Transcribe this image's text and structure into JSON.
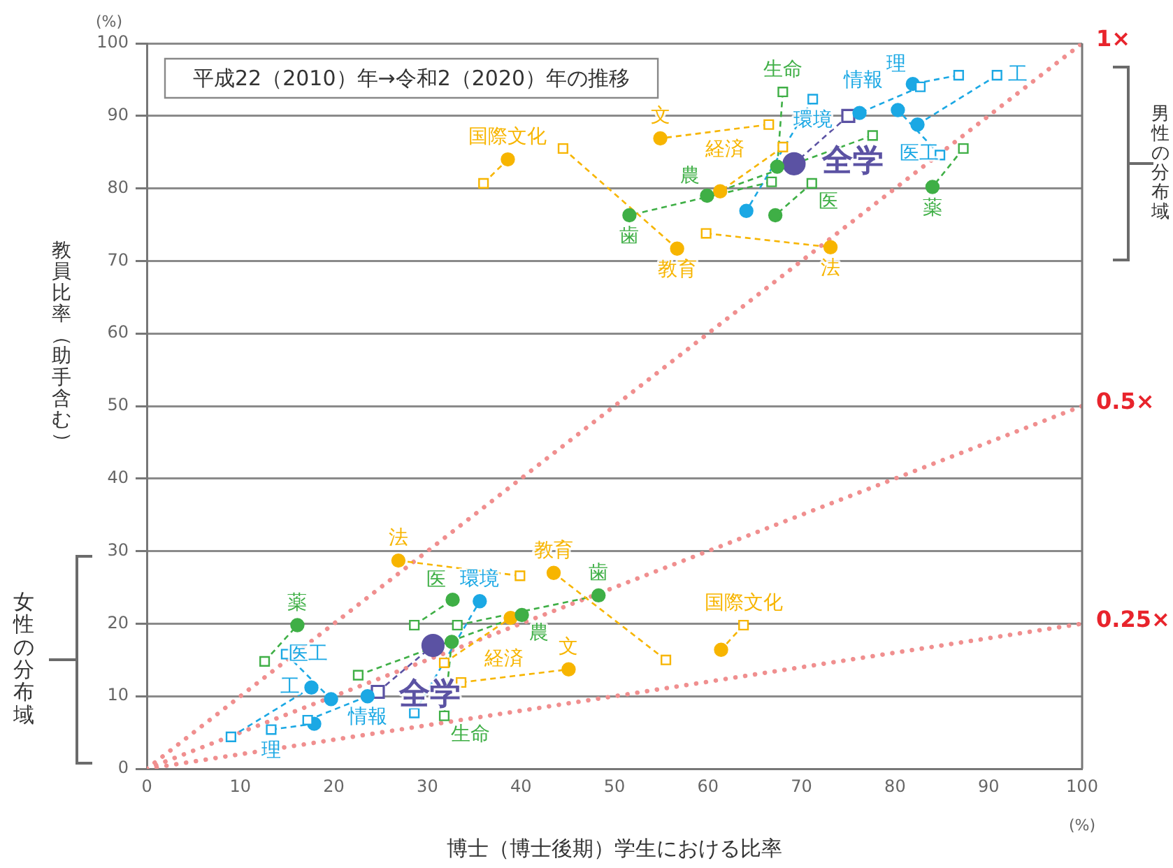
{
  "chart_data": {
    "type": "line",
    "title": "平成22（2010）年→令和2（2020）年の推移",
    "xlabel": "博士（博士後期）学生における比率",
    "ylabel": "教員比率（助手含む）",
    "xlim": [
      0,
      100
    ],
    "ylim": [
      0,
      100
    ],
    "xticks": [
      0,
      10,
      20,
      30,
      40,
      50,
      60,
      70,
      80,
      90,
      100
    ],
    "yticks": [
      0,
      10,
      20,
      30,
      40,
      50,
      60,
      70,
      80,
      90,
      100
    ],
    "grid": "y",
    "legend": false,
    "line_style": "dashed",
    "annotations": [
      "(%)",
      "(%)",
      "男性の分布域",
      "女性の分布域"
    ],
    "series": [
      {
        "name": "1×",
        "color": "#f08f8f",
        "line_style": "dotted",
        "marker": "none",
        "x": [
          0,
          100
        ],
        "values": [
          0,
          100
        ]
      },
      {
        "name": "0.5×",
        "color": "#f08f8f",
        "line_style": "dotted",
        "marker": "none",
        "x": [
          0,
          100
        ],
        "values": [
          0,
          50
        ]
      },
      {
        "name": "0.25×",
        "color": "#f08f8f",
        "line_style": "dotted",
        "marker": "none",
        "x": [
          0,
          100
        ],
        "values": [
          0,
          20
        ]
      },
      {
        "name": "国際文化",
        "color": "#f7b500",
        "marker": "none",
        "x": [
          36.0,
          38.6
        ],
        "values": [
          80.7,
          84.0
        ]
      },
      {
        "name": "教育",
        "color": "#f7b500",
        "marker": "none",
        "x": [
          44.5,
          56.7
        ],
        "values": [
          85.5,
          71.7
        ]
      },
      {
        "name": "文",
        "color": "#f7b500",
        "marker": "none",
        "x": [
          66.5,
          54.9
        ],
        "values": [
          88.8,
          86.9
        ]
      },
      {
        "name": "経済",
        "color": "#f7b500",
        "marker": "none",
        "x": [
          68.0,
          61.3
        ],
        "values": [
          85.7,
          79.6
        ]
      },
      {
        "name": "法",
        "color": "#f7b500",
        "marker": "none",
        "x": [
          59.8,
          73.1
        ],
        "values": [
          73.8,
          71.9
        ]
      },
      {
        "name": "生命",
        "color": "#3faf46",
        "marker": "none",
        "x": [
          68.0,
          67.4
        ],
        "values": [
          93.3,
          83.0
        ]
      },
      {
        "name": "農",
        "color": "#3faf46",
        "marker": "none",
        "x": [
          77.6,
          59.9
        ],
        "values": [
          87.3,
          79.0
        ]
      },
      {
        "name": "歯",
        "color": "#3faf46",
        "marker": "none",
        "x": [
          66.8,
          51.6
        ],
        "values": [
          80.9,
          76.3
        ]
      },
      {
        "name": "医",
        "color": "#3faf46",
        "marker": "none",
        "x": [
          71.1,
          67.2
        ],
        "values": [
          80.7,
          76.3
        ]
      },
      {
        "name": "薬",
        "color": "#3faf46",
        "marker": "none",
        "x": [
          87.3,
          84.0
        ],
        "values": [
          85.5,
          80.2
        ]
      },
      {
        "name": "環境",
        "color": "#1ba8e4",
        "marker": "none",
        "x": [
          71.2,
          64.1
        ],
        "values": [
          92.3,
          76.9
        ]
      },
      {
        "name": "情報",
        "color": "#1ba8e4",
        "marker": "none",
        "x": [
          82.7,
          76.2
        ],
        "values": [
          94.0,
          90.4
        ]
      },
      {
        "name": "理",
        "color": "#1ba8e4",
        "marker": "none",
        "x": [
          86.8,
          81.9
        ],
        "values": [
          95.6,
          94.4
        ]
      },
      {
        "name": "工",
        "color": "#1ba8e4",
        "marker": "none",
        "x": [
          90.9,
          82.4
        ],
        "values": [
          95.6,
          88.8
        ]
      },
      {
        "name": "医工",
        "color": "#1ba8e4",
        "marker": "none",
        "x": [
          84.8,
          80.3
        ],
        "values": [
          84.6,
          90.8
        ]
      },
      {
        "name": "法",
        "color": "#f7b500",
        "marker": "none",
        "x": [
          39.9,
          26.9
        ],
        "values": [
          26.6,
          28.7
        ]
      },
      {
        "name": "教育",
        "color": "#f7b500",
        "marker": "none",
        "x": [
          55.5,
          43.5
        ],
        "values": [
          15.0,
          27.0
        ]
      },
      {
        "name": "国際文化",
        "color": "#f7b500",
        "marker": "none",
        "x": [
          63.8,
          61.4
        ],
        "values": [
          19.8,
          16.4
        ]
      },
      {
        "name": "文",
        "color": "#f7b500",
        "marker": "none",
        "x": [
          33.6,
          45.1
        ],
        "values": [
          11.9,
          13.7
        ]
      },
      {
        "name": "経済",
        "color": "#f7b500",
        "marker": "none",
        "x": [
          31.8,
          38.9
        ],
        "values": [
          14.6,
          20.8
        ]
      },
      {
        "name": "歯",
        "color": "#3faf46",
        "marker": "none",
        "x": [
          33.2,
          48.3
        ],
        "values": [
          19.8,
          23.9
        ]
      },
      {
        "name": "医",
        "color": "#3faf46",
        "marker": "none",
        "x": [
          28.6,
          32.7
        ],
        "values": [
          19.8,
          23.3
        ]
      },
      {
        "name": "農",
        "color": "#3faf46",
        "marker": "none",
        "x": [
          22.6,
          40.1
        ],
        "values": [
          12.9,
          21.2
        ]
      },
      {
        "name": "生命",
        "color": "#3faf46",
        "marker": "none",
        "x": [
          31.8,
          32.6
        ],
        "values": [
          7.3,
          17.5
        ]
      },
      {
        "name": "薬",
        "color": "#3faf46",
        "marker": "none",
        "x": [
          12.6,
          16.1
        ],
        "values": [
          14.8,
          19.8
        ]
      },
      {
        "name": "工",
        "color": "#1ba8e4",
        "marker": "none",
        "x": [
          9.0,
          17.6
        ],
        "values": [
          4.4,
          11.2
        ]
      },
      {
        "name": "医工",
        "color": "#1ba8e4",
        "marker": "none",
        "x": [
          14.9,
          19.7
        ],
        "values": [
          15.8,
          9.6
        ]
      },
      {
        "name": "理",
        "color": "#1ba8e4",
        "marker": "none",
        "x": [
          13.3,
          17.9
        ],
        "values": [
          5.4,
          6.2
        ]
      },
      {
        "name": "情報",
        "color": "#1ba8e4",
        "marker": "none",
        "x": [
          17.2,
          23.6
        ],
        "values": [
          6.7,
          10.0
        ]
      },
      {
        "name": "環境",
        "color": "#1ba8e4",
        "marker": "none",
        "x": [
          28.6,
          35.6
        ],
        "values": [
          7.7,
          23.1
        ]
      },
      {
        "name": "全学",
        "color": "#5b52a3",
        "marker": "none",
        "x": [
          75.0,
          69.2
        ],
        "values": [
          90.0,
          83.4
        ]
      },
      {
        "name": "全学",
        "color": "#5b52a3",
        "marker": "none",
        "x": [
          24.7,
          30.6
        ],
        "values": [
          10.6,
          17.0
        ]
      },
      {
        "type": "scatter",
        "marker": "square",
        "x": [
          36.0,
          44.5,
          66.5,
          68.0,
          59.8,
          68.0,
          77.6,
          66.8,
          71.1,
          87.3,
          71.2,
          82.7,
          86.8,
          90.9,
          84.8,
          39.9,
          55.5,
          63.8,
          33.6,
          31.8,
          33.2,
          28.6,
          22.6,
          31.8,
          12.6,
          9.0,
          14.9,
          13.3,
          17.2,
          28.6
        ],
        "values": [
          80.7,
          85.5,
          88.8,
          85.7,
          73.8,
          93.3,
          87.3,
          80.9,
          80.7,
          85.5,
          92.3,
          94.0,
          95.6,
          95.6,
          84.6,
          26.6,
          15.0,
          19.8,
          11.9,
          14.6,
          19.8,
          19.8,
          12.9,
          7.3,
          14.8,
          4.4,
          15.8,
          5.4,
          6.7,
          7.7
        ],
        "colors": [
          "#f7b500",
          "#f7b500",
          "#f7b500",
          "#f7b500",
          "#f7b500",
          "#3faf46",
          "#3faf46",
          "#3faf46",
          "#3faf46",
          "#3faf46",
          "#1ba8e4",
          "#1ba8e4",
          "#1ba8e4",
          "#1ba8e4",
          "#1ba8e4",
          "#f7b500",
          "#f7b500",
          "#f7b500",
          "#f7b500",
          "#f7b500",
          "#3faf46",
          "#3faf46",
          "#3faf46",
          "#3faf46",
          "#3faf46",
          "#1ba8e4",
          "#1ba8e4",
          "#1ba8e4",
          "#1ba8e4",
          "#1ba8e4"
        ]
      },
      {
        "type": "scatter",
        "marker": "circle",
        "x": [
          38.6,
          56.7,
          54.9,
          61.3,
          73.1,
          67.4,
          59.9,
          51.6,
          67.2,
          84.0,
          64.1,
          76.2,
          81.9,
          82.4,
          80.3,
          26.9,
          43.5,
          61.4,
          45.1,
          38.9,
          48.3,
          32.7,
          40.1,
          32.6,
          16.1,
          17.6,
          19.7,
          17.9,
          23.6,
          35.6
        ],
        "values": [
          84.0,
          71.7,
          86.9,
          79.6,
          71.9,
          83.0,
          79.0,
          76.3,
          76.3,
          80.2,
          76.9,
          90.4,
          94.4,
          88.8,
          90.8,
          28.7,
          27.0,
          16.4,
          13.7,
          20.8,
          23.9,
          23.3,
          21.2,
          17.5,
          19.8,
          11.2,
          9.6,
          6.2,
          10.0,
          23.1
        ],
        "colors": [
          "#f7b500",
          "#f7b500",
          "#f7b500",
          "#f7b500",
          "#f7b500",
          "#3faf46",
          "#3faf46",
          "#3faf46",
          "#3faf46",
          "#3faf46",
          "#1ba8e4",
          "#1ba8e4",
          "#1ba8e4",
          "#1ba8e4",
          "#1ba8e4",
          "#f7b500",
          "#f7b500",
          "#f7b500",
          "#f7b500",
          "#f7b500",
          "#3faf46",
          "#3faf46",
          "#3faf46",
          "#3faf46",
          "#3faf46",
          "#1ba8e4",
          "#1ba8e4",
          "#1ba8e4",
          "#1ba8e4",
          "#1ba8e4"
        ]
      },
      {
        "type": "scatter",
        "marker": "square",
        "color": "#5b52a3",
        "x": [
          75.0,
          24.7
        ],
        "values": [
          90.0,
          10.6
        ]
      },
      {
        "type": "scatter",
        "marker": "circle",
        "color": "#5b52a3",
        "x": [
          69.2,
          30.6
        ],
        "values": [
          83.4,
          17.0
        ]
      }
    ]
  }
}
